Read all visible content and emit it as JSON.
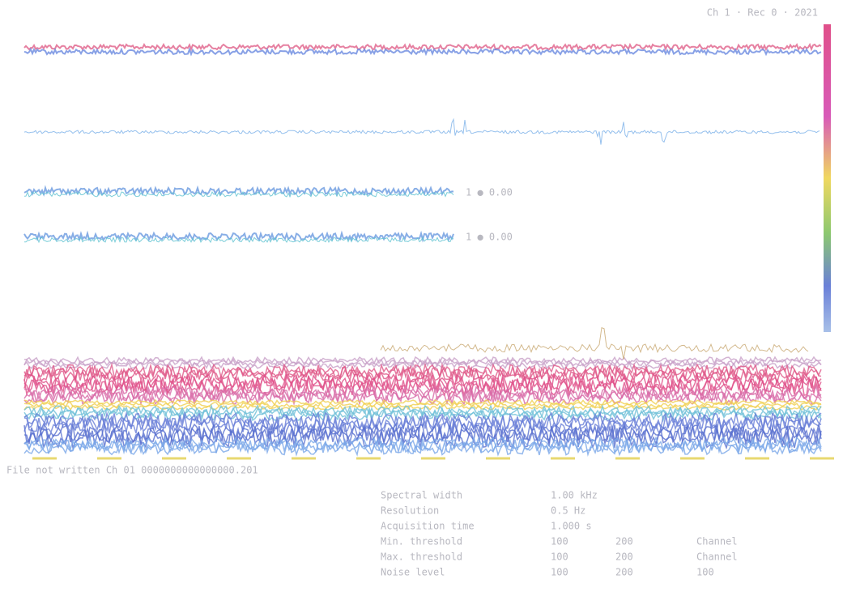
{
  "header": {
    "title": "Ch 1 · Rec 0 · 2021"
  },
  "traces": {
    "labels": [
      "1 ● 0.00",
      "1 ● 0.00"
    ]
  },
  "status": {
    "text": "File not written   Ch 01 0000000000000000.201"
  },
  "info": {
    "rows": [
      [
        "Spectral width",
        "1.00 kHz",
        "",
        ""
      ],
      [
        "Resolution",
        "0.5 Hz",
        "",
        ""
      ],
      [
        "Acquisition time",
        "1.000 s",
        "",
        ""
      ],
      [
        "Min. threshold",
        "100",
        "200",
        "Channel"
      ],
      [
        "Max. threshold",
        "100",
        "200",
        "Channel"
      ],
      [
        "Noise level",
        "100",
        "200",
        "100"
      ]
    ]
  }
}
